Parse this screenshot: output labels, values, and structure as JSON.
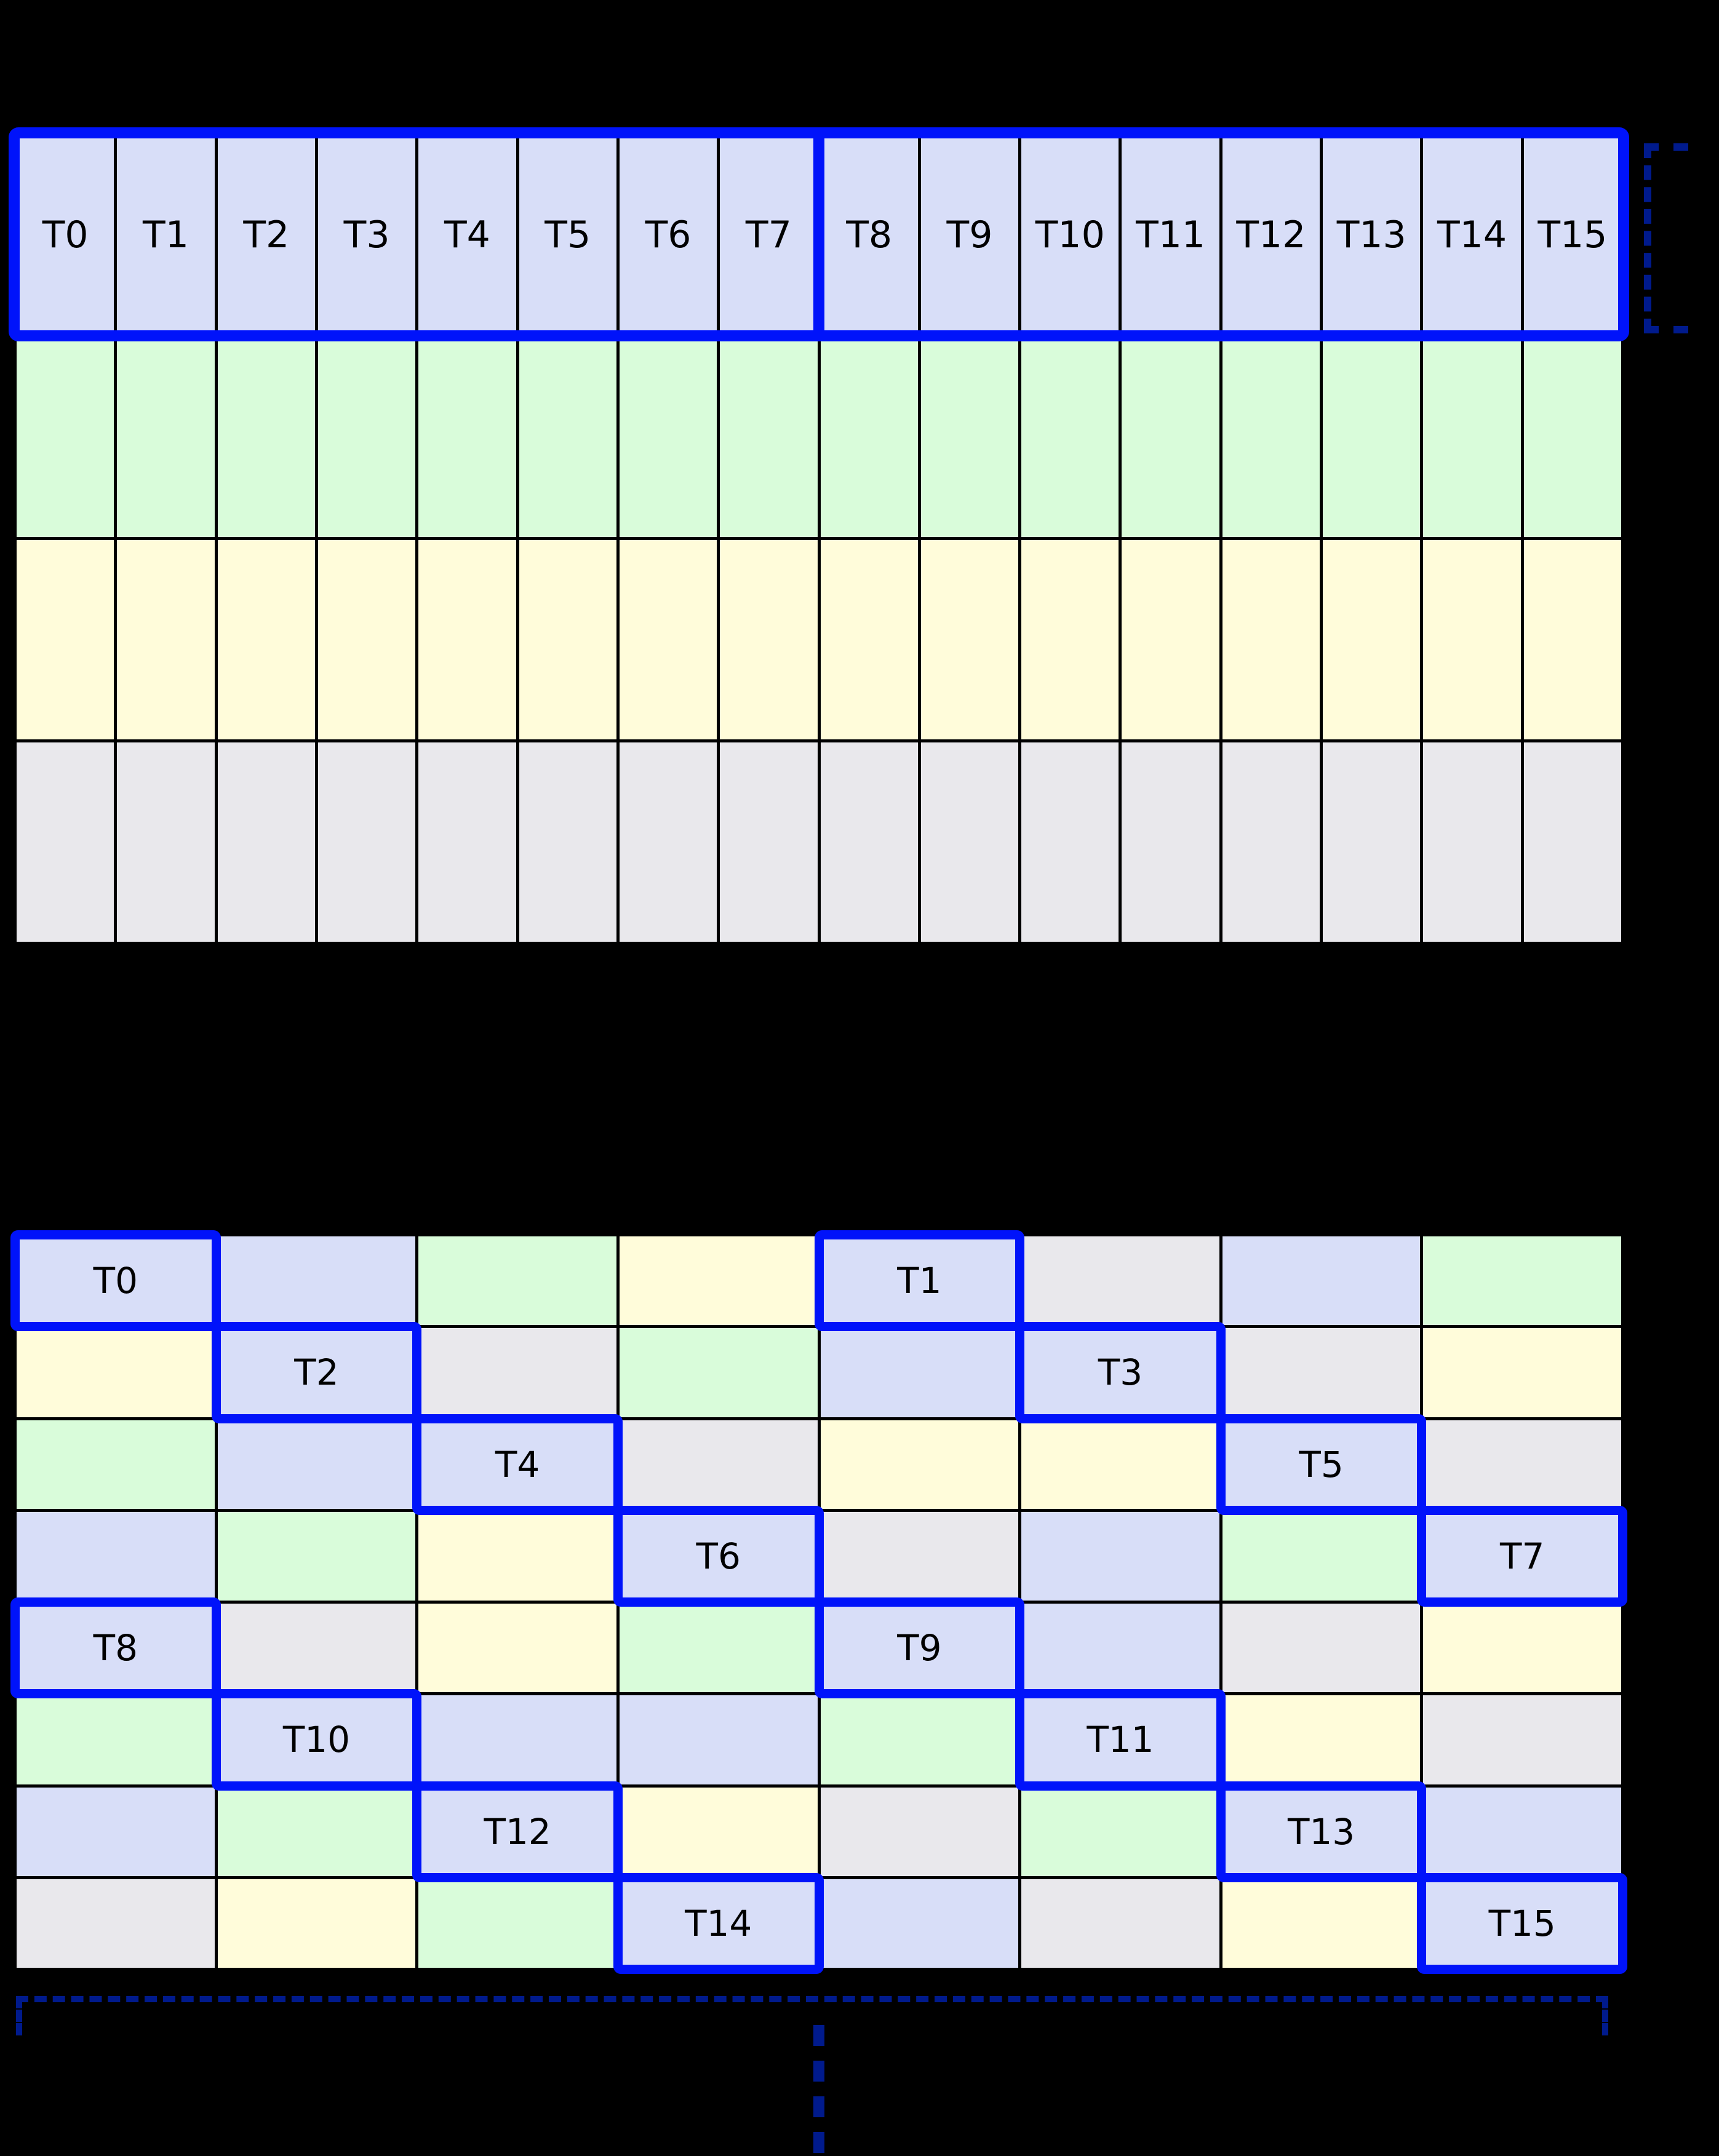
{
  "figure": {
    "background": "#000000"
  },
  "palette": {
    "figure_bg": "#000000",
    "lavender": "#d8def8",
    "green": "#d9fcda",
    "yellow": "#fffcda",
    "gray": "#e9e8ec",
    "thread_border_blue": "#0013fa",
    "annotation_navy": "#001a8c",
    "grid_line": "#000000",
    "label": "#000000"
  },
  "warp_row_grid": {
    "columns": 16,
    "thread_labels": [
      "T0",
      "T1",
      "T2",
      "T3",
      "T4",
      "T5",
      "T6",
      "T7",
      "T8",
      "T9",
      "T10",
      "T11",
      "T12",
      "T13",
      "T14",
      "T15"
    ],
    "half_divider_after": "T7",
    "lower_band_colors": [
      "green",
      "yellow",
      "gray"
    ]
  },
  "swizzled_grid": {
    "rows": 8,
    "columns": 8,
    "cell_colors": [
      [
        "lavender",
        "green",
        "yellow",
        "gray",
        "lavender",
        "green",
        "yellow",
        "gray"
      ],
      [
        "green",
        "lavender",
        "gray",
        "yellow",
        "green",
        "lavender",
        "gray",
        "yellow"
      ],
      [
        "yellow",
        "gray",
        "lavender",
        "green",
        "yellow",
        "gray",
        "lavender",
        "green"
      ],
      [
        "gray",
        "yellow",
        "green",
        "lavender",
        "gray",
        "yellow",
        "green",
        "lavender"
      ],
      [
        "lavender",
        "green",
        "yellow",
        "gray",
        "lavender",
        "green",
        "yellow",
        "gray"
      ],
      [
        "green",
        "lavender",
        "gray",
        "yellow",
        "green",
        "lavender",
        "gray",
        "yellow"
      ],
      [
        "yellow",
        "gray",
        "lavender",
        "green",
        "yellow",
        "gray",
        "lavender",
        "green"
      ],
      [
        "gray",
        "yellow",
        "green",
        "lavender",
        "gray",
        "yellow",
        "green",
        "lavender"
      ]
    ],
    "threads": [
      {
        "label": "T0",
        "row": 0,
        "col": 0
      },
      {
        "label": "T1",
        "row": 0,
        "col": 4
      },
      {
        "label": "T2",
        "row": 1,
        "col": 1
      },
      {
        "label": "T3",
        "row": 1,
        "col": 5
      },
      {
        "label": "T4",
        "row": 2,
        "col": 2
      },
      {
        "label": "T5",
        "row": 2,
        "col": 6
      },
      {
        "label": "T6",
        "row": 3,
        "col": 3
      },
      {
        "label": "T7",
        "row": 3,
        "col": 7
      },
      {
        "label": "T8",
        "row": 4,
        "col": 0
      },
      {
        "label": "T9",
        "row": 4,
        "col": 4
      },
      {
        "label": "T10",
        "row": 5,
        "col": 1
      },
      {
        "label": "T11",
        "row": 5,
        "col": 5
      },
      {
        "label": "T12",
        "row": 6,
        "col": 2
      },
      {
        "label": "T13",
        "row": 6,
        "col": 6
      },
      {
        "label": "T14",
        "row": 7,
        "col": 3
      },
      {
        "label": "T15",
        "row": 7,
        "col": 7
      }
    ]
  },
  "annotations": {
    "row_height_bracket": {
      "style": "dashed",
      "side": "right-of-warp-row"
    },
    "bottom_repeat_bracket": {
      "style": "dashed",
      "position": "below-swizzled-grid"
    },
    "continuation_ellipsis": {
      "style": "dashed-vertical",
      "dash_count": 4
    }
  }
}
